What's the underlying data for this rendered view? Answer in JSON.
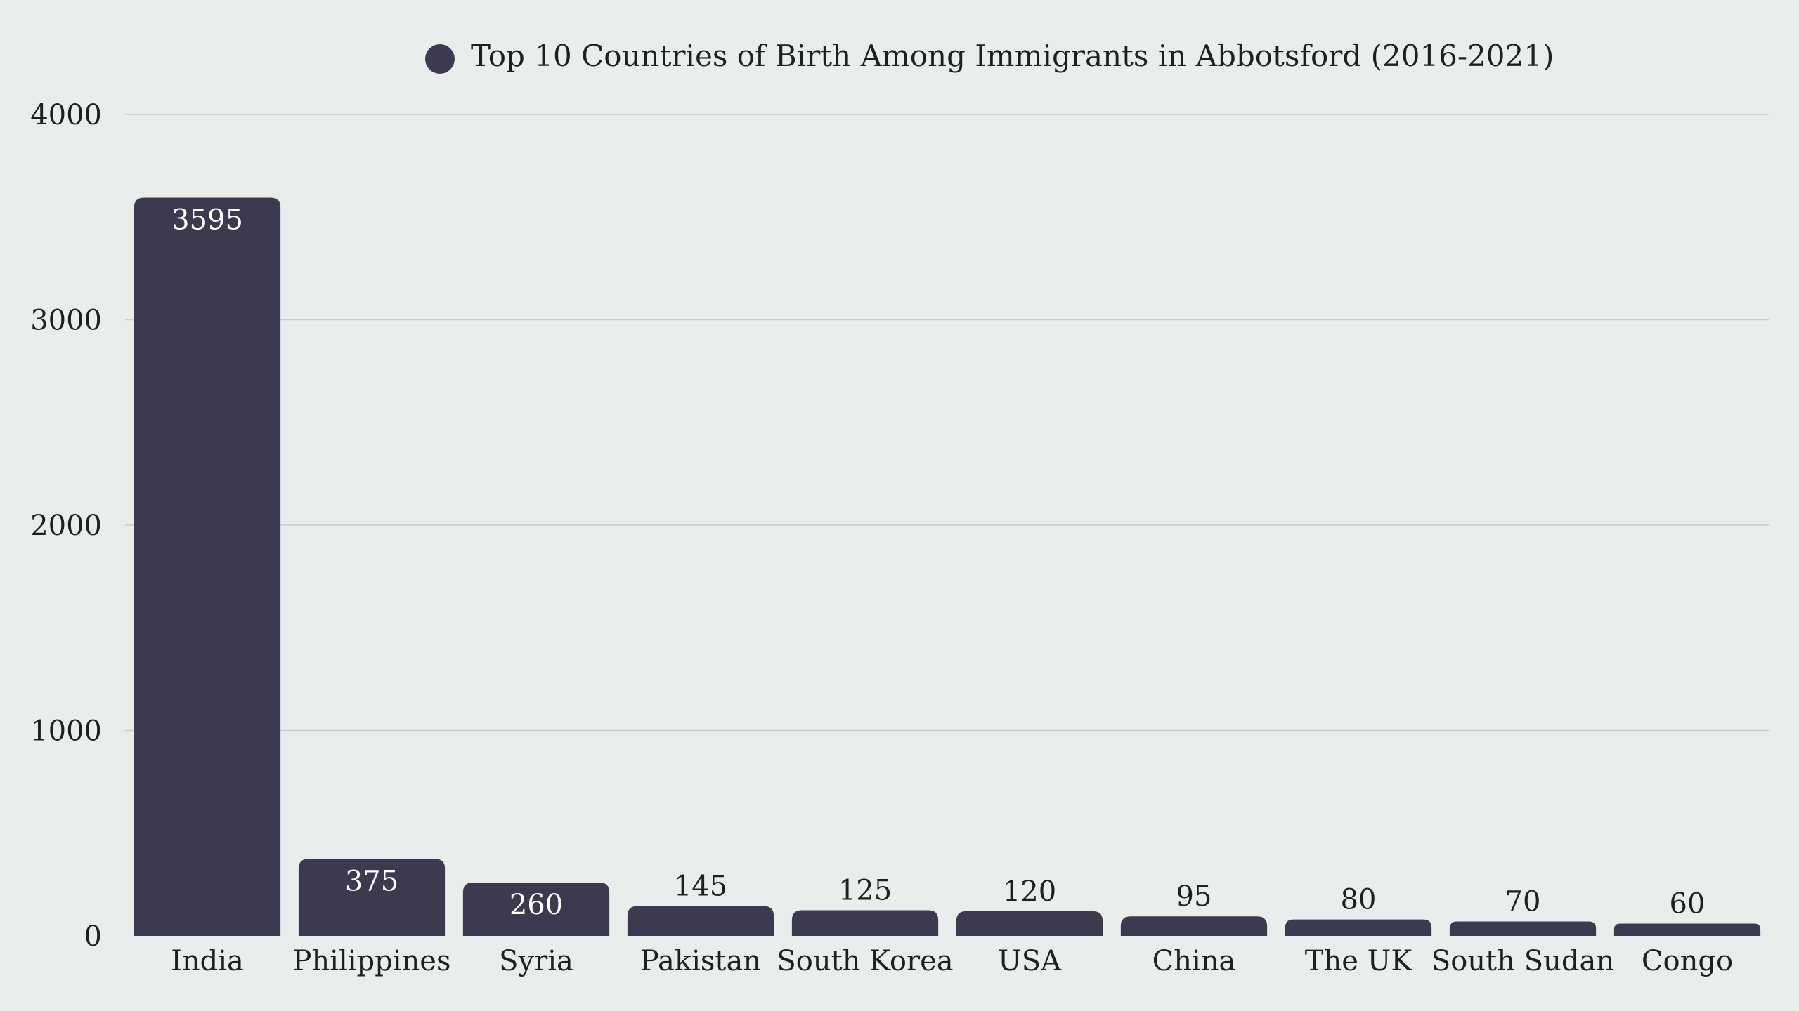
{
  "chart_data": {
    "type": "bar",
    "legend": {
      "label": "Top 10 Countries of Birth Among Immigrants in Abbotsford (2016-2021)",
      "position": "top"
    },
    "categories": [
      "India",
      "Philippines",
      "Syria",
      "Pakistan",
      "South Korea",
      "USA",
      "China",
      "The UK",
      "South Sudan",
      "Congo"
    ],
    "series": [
      {
        "name": "Top 10 Countries of Birth Among Immigrants in Abbotsford (2016-2021)",
        "values": [
          3595,
          375,
          260,
          145,
          125,
          120,
          95,
          80,
          70,
          60
        ]
      }
    ],
    "ylim": [
      0,
      4000
    ],
    "yticks": [
      0,
      1000,
      2000,
      3000,
      4000
    ],
    "grid": true,
    "colors": {
      "bar": "#3d394f",
      "label_inside": "#ffffff",
      "label_outside": "#1f1f1f",
      "grid": "#c8cccc",
      "background": "#e9eeed"
    }
  }
}
